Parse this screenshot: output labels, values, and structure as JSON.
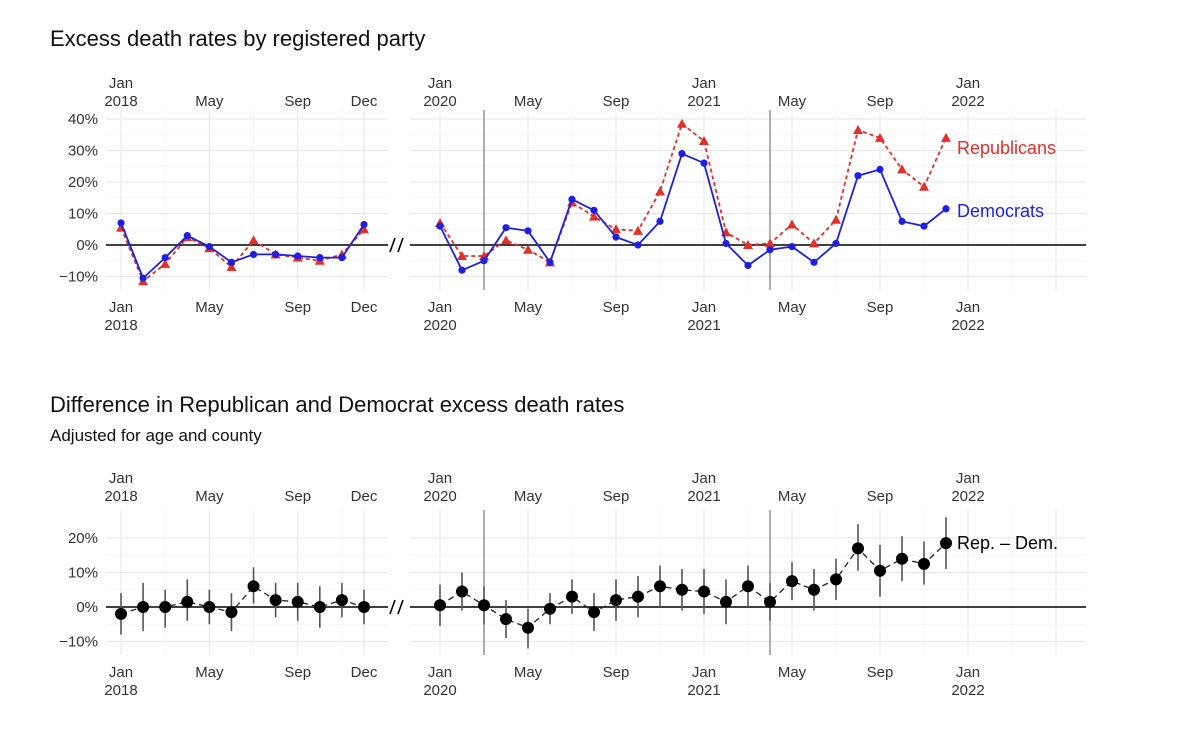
{
  "charts": {
    "top": {
      "title": "Excess death rates by registered party"
    },
    "bottom": {
      "title": "Difference in Republican and Democrat excess death rates",
      "subtitle": "Adjusted for age and county"
    }
  },
  "chart_data": [
    {
      "type": "line",
      "title": "Excess death rates by registered party",
      "ylim": [
        -12,
        41
      ],
      "y_ticks": [
        -10,
        0,
        10,
        20,
        30,
        40
      ],
      "y_tick_labels": [
        "−10%",
        "0%",
        "10%",
        "20%",
        "30%",
        "40%"
      ],
      "x_axis": "month",
      "x_break": "2018-12 to 2020-01 (axis break)",
      "x_ticks_2018": [
        {
          "month": "2018-01",
          "label": "Jan",
          "sublabel": "2018"
        },
        {
          "month": "2018-05",
          "label": "May",
          "sublabel": ""
        },
        {
          "month": "2018-09",
          "label": "Sep",
          "sublabel": ""
        },
        {
          "month": "2018-12",
          "label": "Dec",
          "sublabel": ""
        }
      ],
      "x_ticks_2020": [
        {
          "month": "2020-01",
          "label": "Jan",
          "sublabel": "2020"
        },
        {
          "month": "2020-05",
          "label": "May",
          "sublabel": ""
        },
        {
          "month": "2020-09",
          "label": "Sep",
          "sublabel": ""
        },
        {
          "month": "2021-01",
          "label": "Jan",
          "sublabel": "2021"
        },
        {
          "month": "2021-05",
          "label": "May",
          "sublabel": ""
        },
        {
          "month": "2021-09",
          "label": "Sep",
          "sublabel": ""
        },
        {
          "month": "2022-01",
          "label": "Jan",
          "sublabel": "2022"
        }
      ],
      "reference_lines_month": [
        "2020-03",
        "2021-04"
      ],
      "series": [
        {
          "name": "Democrats",
          "color": "#1f1fe0",
          "marker": "circle",
          "line": "solid",
          "data_2018": [
            [
              "2018-01",
              7
            ],
            [
              "2018-02",
              -10.5
            ],
            [
              "2018-03",
              -4
            ],
            [
              "2018-04",
              3
            ],
            [
              "2018-05",
              -0.5
            ],
            [
              "2018-06",
              -5.5
            ],
            [
              "2018-07",
              -3
            ],
            [
              "2018-08",
              -3
            ],
            [
              "2018-09",
              -3.5
            ],
            [
              "2018-10",
              -4
            ],
            [
              "2018-11",
              -4
            ],
            [
              "2018-12",
              6.5
            ]
          ],
          "data_2020": [
            [
              "2020-01",
              6
            ],
            [
              "2020-02",
              -8
            ],
            [
              "2020-03",
              -5
            ],
            [
              "2020-04",
              5.5
            ],
            [
              "2020-05",
              4.5
            ],
            [
              "2020-06",
              -5.5
            ],
            [
              "2020-07",
              14.5
            ],
            [
              "2020-08",
              11
            ],
            [
              "2020-09",
              2.5
            ],
            [
              "2020-10",
              0
            ],
            [
              "2020-11",
              7.5
            ],
            [
              "2020-12",
              29
            ],
            [
              "2021-01",
              26
            ],
            [
              "2021-02",
              0.5
            ],
            [
              "2021-03",
              -6.5
            ],
            [
              "2021-04",
              -1.5
            ],
            [
              "2021-05",
              -0.5
            ],
            [
              "2021-06",
              -5.5
            ],
            [
              "2021-07",
              0.5
            ],
            [
              "2021-08",
              22
            ],
            [
              "2021-09",
              24
            ],
            [
              "2021-10",
              7.5
            ],
            [
              "2021-11",
              6
            ],
            [
              "2021-12",
              11.5
            ]
          ]
        },
        {
          "name": "Republicans",
          "color": "#e0302a",
          "marker": "triangle",
          "line": "dashed",
          "data_2018": [
            [
              "2018-01",
              5.5
            ],
            [
              "2018-02",
              -11.5
            ],
            [
              "2018-03",
              -6
            ],
            [
              "2018-04",
              2.5
            ],
            [
              "2018-05",
              -1
            ],
            [
              "2018-06",
              -7
            ],
            [
              "2018-07",
              1.5
            ],
            [
              "2018-08",
              -3
            ],
            [
              "2018-09",
              -4
            ],
            [
              "2018-10",
              -5
            ],
            [
              "2018-11",
              -3
            ],
            [
              "2018-12",
              5
            ]
          ],
          "data_2020": [
            [
              "2020-01",
              7
            ],
            [
              "2020-02",
              -3.5
            ],
            [
              "2020-03",
              -3.5
            ],
            [
              "2020-04",
              1.5
            ],
            [
              "2020-05",
              -1.5
            ],
            [
              "2020-06",
              -5.5
            ],
            [
              "2020-07",
              13.5
            ],
            [
              "2020-08",
              9
            ],
            [
              "2020-09",
              5
            ],
            [
              "2020-10",
              4.5
            ],
            [
              "2020-11",
              17
            ],
            [
              "2020-12",
              38.5
            ],
            [
              "2021-01",
              33
            ],
            [
              "2021-02",
              4
            ],
            [
              "2021-03",
              0
            ],
            [
              "2021-04",
              0.5
            ],
            [
              "2021-05",
              6.5
            ],
            [
              "2021-06",
              0.5
            ],
            [
              "2021-07",
              8
            ],
            [
              "2021-08",
              36.5
            ],
            [
              "2021-09",
              34
            ],
            [
              "2021-10",
              24
            ],
            [
              "2021-11",
              18.5
            ],
            [
              "2021-12",
              34
            ]
          ]
        }
      ]
    },
    {
      "type": "scatter",
      "title": "Difference in Republican and Democrat excess death rates",
      "subtitle": "Adjusted for age and county",
      "ylim": [
        -12,
        28
      ],
      "y_ticks": [
        -10,
        0,
        10,
        20
      ],
      "y_tick_labels": [
        "−10%",
        "0%",
        "10%",
        "20%"
      ],
      "reference_lines_month": [
        "2020-03",
        "2021-04"
      ],
      "series": [
        {
          "name": "Rep. – Dem.",
          "color": "#000000",
          "marker": "circle",
          "line": "dashed",
          "error_bars": true,
          "data_2018": [
            [
              "2018-01",
              -2,
              -8,
              4
            ],
            [
              "2018-02",
              0,
              -7,
              7
            ],
            [
              "2018-03",
              0,
              -6,
              5
            ],
            [
              "2018-04",
              1.5,
              -4,
              8
            ],
            [
              "2018-05",
              0,
              -5,
              5
            ],
            [
              "2018-06",
              -1.5,
              -7,
              4
            ],
            [
              "2018-07",
              6,
              1,
              11.5
            ],
            [
              "2018-08",
              2,
              -3,
              7
            ],
            [
              "2018-09",
              1.5,
              -4,
              7
            ],
            [
              "2018-10",
              0,
              -6,
              6
            ],
            [
              "2018-11",
              2,
              -3,
              7
            ],
            [
              "2018-12",
              0,
              -5,
              5
            ]
          ],
          "data_2020": [
            [
              "2020-01",
              0.5,
              -5.5,
              6.5
            ],
            [
              "2020-02",
              4.5,
              -1,
              10
            ],
            [
              "2020-03",
              0.5,
              -5,
              6
            ],
            [
              "2020-04",
              -3.5,
              -9,
              2
            ],
            [
              "2020-05",
              -6,
              -12,
              -0.5
            ],
            [
              "2020-06",
              -0.5,
              -5,
              4
            ],
            [
              "2020-07",
              3,
              -2,
              8
            ],
            [
              "2020-08",
              -1.5,
              -7,
              4
            ],
            [
              "2020-09",
              2,
              -4,
              8
            ],
            [
              "2020-10",
              3,
              -3,
              9
            ],
            [
              "2020-11",
              6,
              0,
              12
            ],
            [
              "2020-12",
              5,
              -1,
              11
            ],
            [
              "2021-01",
              4.5,
              -2,
              11
            ],
            [
              "2021-02",
              1.5,
              -5,
              8
            ],
            [
              "2021-03",
              6,
              0,
              12
            ],
            [
              "2021-04",
              1.5,
              -4,
              7
            ],
            [
              "2021-05",
              7.5,
              2,
              13
            ],
            [
              "2021-06",
              5,
              -1,
              11
            ],
            [
              "2021-07",
              8,
              2,
              14
            ],
            [
              "2021-08",
              17,
              10.5,
              24
            ],
            [
              "2021-09",
              10.5,
              3,
              18
            ],
            [
              "2021-10",
              14,
              7.5,
              20.5
            ],
            [
              "2021-11",
              12.5,
              6.5,
              19
            ],
            [
              "2021-12",
              18.5,
              11,
              26
            ]
          ]
        }
      ]
    }
  ]
}
